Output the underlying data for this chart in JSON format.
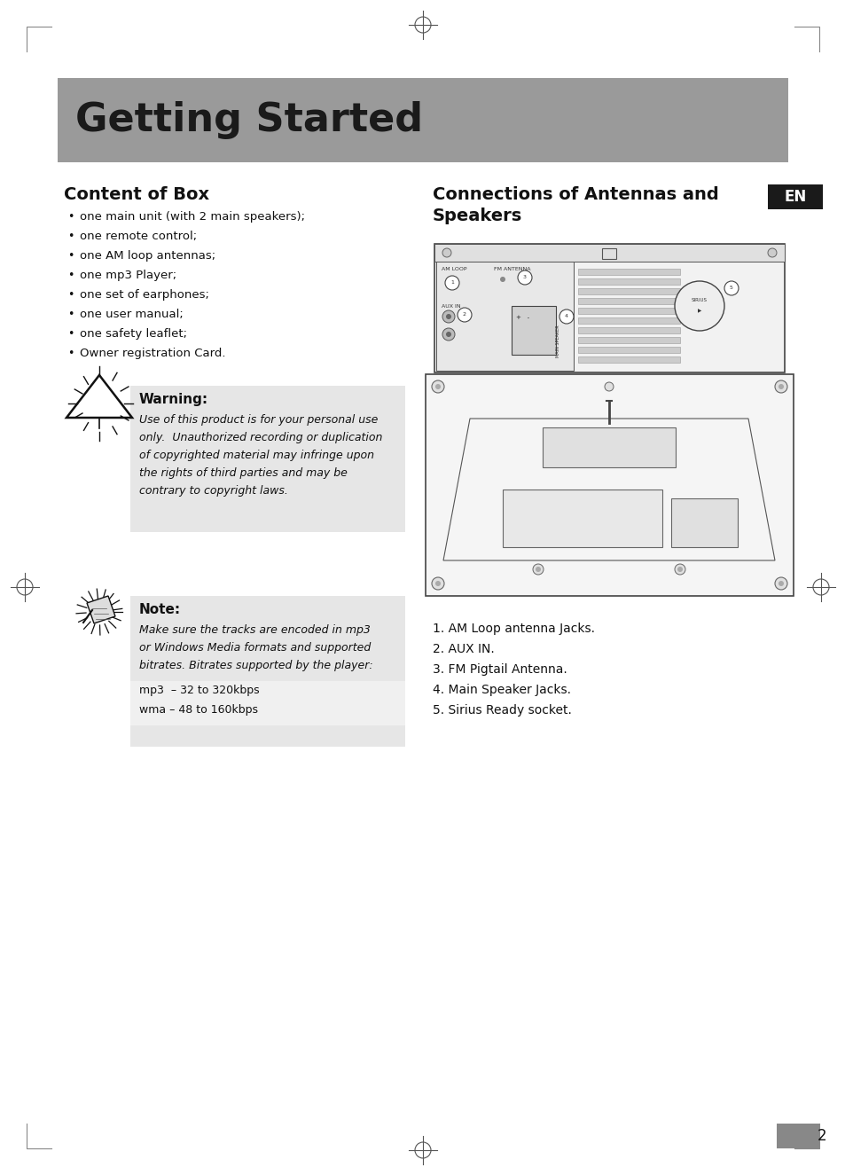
{
  "page_bg": "#ffffff",
  "header_bg": "#9a9a9a",
  "header_text": "Getting Started",
  "header_text_color": "#1a1a1a",
  "content_box_title": "Content of Box",
  "content_box_items": [
    "one main unit (with 2 main speakers);",
    "one remote control;",
    "one AM loop antennas;",
    "one mp3 Player;",
    "one set of earphones;",
    "one user manual;",
    "one safety leaflet;",
    "Owner registration Card."
  ],
  "connections_title_line1": "Connections of Antennas and",
  "connections_title_line2": "Speakers",
  "en_label": "EN",
  "en_bg": "#1a1a1a",
  "en_text_color": "#ffffff",
  "warning_title": "Warning:",
  "warning_text_lines": [
    "Use of this product is for your personal use",
    "only.  Unauthorized recording or duplication",
    "of copyrighted material may infringe upon",
    "the rights of third parties and may be",
    "contrary to copyright laws."
  ],
  "warning_bg": "#e6e6e6",
  "note_title": "Note:",
  "note_text_lines": [
    "Make sure the tracks are encoded in mp3",
    "or Windows Media formats and supported",
    "bitrates. Bitrates supported by the player:"
  ],
  "note_bg": "#e6e6e6",
  "note_mp3": "mp3  – 32 to 320kbps",
  "note_wma": "wma – 48 to 160kbps",
  "connections_list": [
    "1. AM Loop antenna Jacks.",
    "2. AUX IN.",
    "3. FM Pigtail Antenna.",
    "4. Main Speaker Jacks.",
    "5. Sirius Ready socket."
  ],
  "page_number": "2",
  "page_number_bg": "#888888"
}
